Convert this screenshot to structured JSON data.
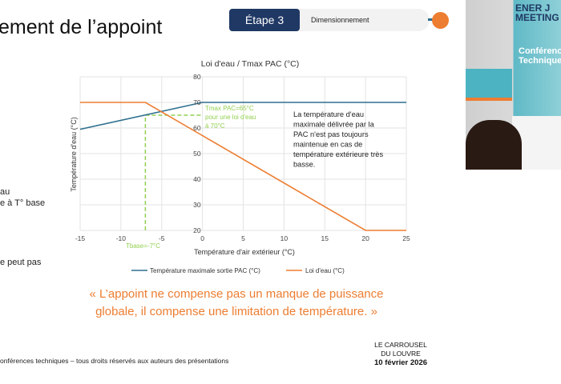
{
  "slide": {
    "title": "ement de l’appoint",
    "step": {
      "label": "Étape 3",
      "description": "Dimensionnement",
      "accent": "#ed7d31",
      "label_bg": "#1f3864"
    },
    "side_text": [
      "au",
      "e à T° base",
      "e peut pas"
    ],
    "quote_line1": "« L’appoint ne compense pas un manque de puissance",
    "quote_line2": "globale, il compense une limitation de température. »",
    "footer_note": "onférences techniques – tous droits réservés aux auteurs des présentations",
    "venue_line1": "LE CARROUSEL",
    "venue_line2": "DU LOUVRE",
    "venue_date": "10 février 2026"
  },
  "video_feed": {
    "banner_text": "ENER J MEETING",
    "screen_text": "Conférence Techniques"
  },
  "chart_data": {
    "type": "line",
    "title": "Loi d'eau /  Tmax PAC (°C)",
    "xlabel": "Température d'air extérieur (°C)",
    "ylabel": "Température d'eau (°C)",
    "xlim": [
      -15,
      25
    ],
    "ylim": [
      20,
      80
    ],
    "xticks": [
      "-15",
      "-10",
      "-5",
      "0",
      "5",
      "10",
      "15",
      "20",
      "25"
    ],
    "yticks": [
      "20",
      "30",
      "40",
      "50",
      "60",
      "70",
      "80"
    ],
    "grid": true,
    "legend": "bottom",
    "series": [
      {
        "name": "Température maximale sortie PAC (°C)",
        "color": "#2e6f8e",
        "x": [
          -15,
          0,
          25
        ],
        "y": [
          59.5,
          70,
          70
        ]
      },
      {
        "name": "Loi d'eau (°C)",
        "color": "#ed7d31",
        "x": [
          -15,
          -7,
          20,
          25
        ],
        "y": [
          70,
          70,
          20,
          20
        ]
      }
    ],
    "guides": {
      "color": "#92d050",
      "tbase_x": -7,
      "tmax_y": 65
    },
    "annotations": {
      "tmax_line1": "Tmax PAC=65°C",
      "tmax_line2": "pour une loi d'eau",
      "tmax_line3": "à 70°C",
      "tbase": "Tbase=-7°C",
      "note": [
        "La température d'eau",
        "maximale délivrée par la",
        "PAC n'est pas toujours",
        "maintenue en cas de",
        "température extérieure très",
        "basse."
      ]
    }
  }
}
